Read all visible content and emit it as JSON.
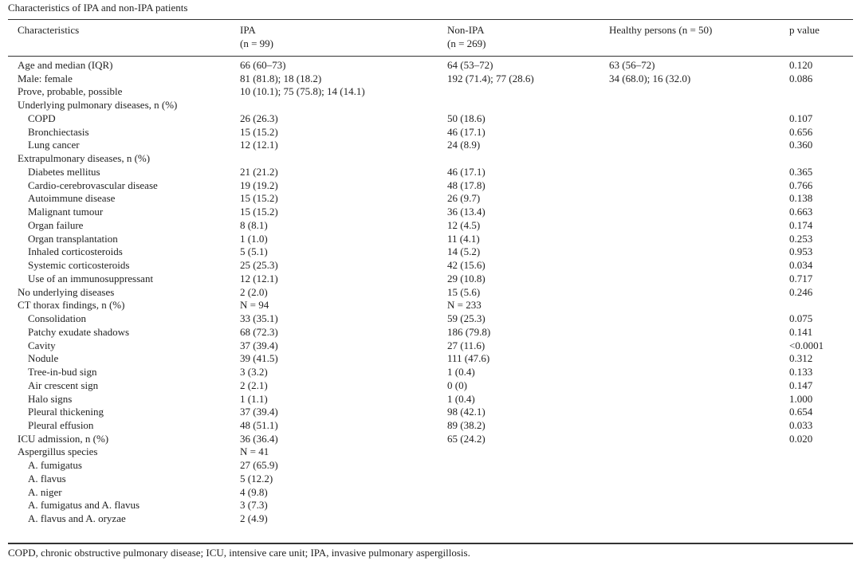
{
  "title": "Characteristics of IPA and non-IPA patients",
  "table": {
    "header": [
      [
        "Characteristics"
      ],
      [
        "IPA",
        "(n = 99)"
      ],
      [
        "Non-IPA",
        "(n = 269)"
      ],
      [
        "Healthy persons (n = 50)"
      ],
      [
        "p value"
      ]
    ],
    "rows": [
      {
        "cells": [
          "Age and median (IQR)",
          "66 (60–73)",
          "64 (53–72)",
          "63 (56–72)",
          "0.120"
        ]
      },
      {
        "cells": [
          "Male: female",
          "81 (81.8); 18 (18.2)",
          "192 (71.4); 77 (28.6)",
          "34 (68.0); 16 (32.0)",
          "0.086"
        ]
      },
      {
        "cells": [
          "Prove, probable, possible",
          "10 (10.1); 75 (75.8); 14 (14.1)",
          null,
          null,
          null
        ]
      },
      {
        "cells": [
          "Underlying pulmonary diseases, n (%)",
          null,
          null,
          null,
          null
        ]
      },
      {
        "cells": [
          "COPD",
          "26 (26.3)",
          "50 (18.6)",
          null,
          "0.107"
        ],
        "indent": true
      },
      {
        "cells": [
          "Bronchiectasis",
          "15 (15.2)",
          "46 (17.1)",
          null,
          "0.656"
        ],
        "indent": true
      },
      {
        "cells": [
          "Lung cancer",
          "12 (12.1)",
          "24 (8.9)",
          null,
          "0.360"
        ],
        "indent": true
      },
      {
        "cells": [
          "Extrapulmonary diseases, n (%)",
          null,
          null,
          null,
          null
        ]
      },
      {
        "cells": [
          "Diabetes mellitus",
          "21 (21.2)",
          "46 (17.1)",
          null,
          "0.365"
        ],
        "indent": true
      },
      {
        "cells": [
          "Cardio-cerebrovascular disease",
          "19 (19.2)",
          "48 (17.8)",
          null,
          "0.766"
        ],
        "indent": true
      },
      {
        "cells": [
          "Autoimmune disease",
          "15 (15.2)",
          "26 (9.7)",
          null,
          "0.138"
        ],
        "indent": true
      },
      {
        "cells": [
          "Malignant tumour",
          "15 (15.2)",
          "36 (13.4)",
          null,
          "0.663"
        ],
        "indent": true
      },
      {
        "cells": [
          "Organ failure",
          "8 (8.1)",
          "12 (4.5)",
          null,
          "0.174"
        ],
        "indent": true
      },
      {
        "cells": [
          "Organ transplantation",
          "1 (1.0)",
          "11 (4.1)",
          null,
          "0.253"
        ],
        "indent": true
      },
      {
        "cells": [
          "Inhaled corticosteroids",
          "5 (5.1)",
          "14 (5.2)",
          null,
          "0.953"
        ],
        "indent": true
      },
      {
        "cells": [
          "Systemic corticosteroids",
          "25 (25.3)",
          "42 (15.6)",
          null,
          "0.034"
        ],
        "indent": true
      },
      {
        "cells": [
          "Use of an immunosuppressant",
          "12 (12.1)",
          "29 (10.8)",
          null,
          "0.717"
        ],
        "indent": true
      },
      {
        "cells": [
          "No underlying diseases",
          "2 (2.0)",
          "15 (5.6)",
          null,
          "0.246"
        ]
      },
      {
        "cells": [
          "CT thorax findings, n (%)",
          "N = 94",
          "N = 233",
          null,
          null
        ]
      },
      {
        "cells": [
          "Consolidation",
          "33 (35.1)",
          "59 (25.3)",
          null,
          "0.075"
        ],
        "indent": true
      },
      {
        "cells": [
          "Patchy exudate shadows",
          "68 (72.3)",
          "186 (79.8)",
          null,
          "0.141"
        ],
        "indent": true
      },
      {
        "cells": [
          "Cavity",
          "37 (39.4)",
          "27 (11.6)",
          null,
          "<0.0001"
        ],
        "indent": true
      },
      {
        "cells": [
          "Nodule",
          "39 (41.5)",
          "111 (47.6)",
          null,
          "0.312"
        ],
        "indent": true
      },
      {
        "cells": [
          "Tree-in-bud sign",
          "3 (3.2)",
          "1 (0.4)",
          null,
          "0.133"
        ],
        "indent": true
      },
      {
        "cells": [
          "Air crescent sign",
          "2 (2.1)",
          "0 (0)",
          null,
          "0.147"
        ],
        "indent": true
      },
      {
        "cells": [
          "Halo signs",
          "1 (1.1)",
          "1 (0.4)",
          null,
          "1.000"
        ],
        "indent": true
      },
      {
        "cells": [
          "Pleural thickening",
          "37 (39.4)",
          "98 (42.1)",
          null,
          "0.654"
        ],
        "indent": true
      },
      {
        "cells": [
          "Pleural effusion",
          "48 (51.1)",
          "89 (38.2)",
          null,
          "0.033"
        ],
        "indent": true
      },
      {
        "cells": [
          "ICU admission, n (%)",
          "36 (36.4)",
          "65 (24.2)",
          null,
          "0.020"
        ]
      },
      {
        "cells": [
          "Aspergillus species",
          "N = 41",
          null,
          null,
          null
        ]
      },
      {
        "cells": [
          "A. fumigatus",
          "27 (65.9)",
          null,
          null,
          null
        ],
        "indent": true
      },
      {
        "cells": [
          "A. flavus",
          "5 (12.2)",
          null,
          null,
          null
        ],
        "indent": true
      },
      {
        "cells": [
          "A. niger",
          "4 (9.8)",
          null,
          null,
          null
        ],
        "indent": true
      },
      {
        "cells": [
          "A. fumigatus and A. flavus",
          "3 (7.3)",
          null,
          null,
          null
        ],
        "indent": true
      },
      {
        "cells": [
          "A. flavus and A. oryzae",
          "2 (4.9)",
          null,
          null,
          null
        ],
        "indent": true
      }
    ]
  },
  "footnote": "COPD, chronic obstructive pulmonary disease; ICU, intensive care unit; IPA, invasive pulmonary aspergillosis."
}
